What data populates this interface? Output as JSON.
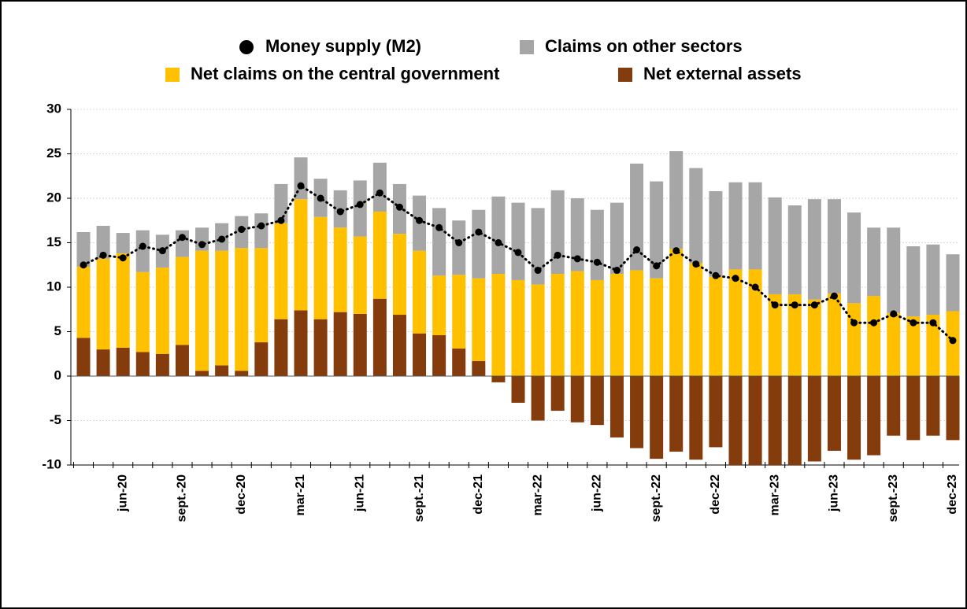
{
  "chart_data": {
    "type": "bar",
    "stacked": true,
    "categories": [
      null,
      null,
      "jun-20",
      null,
      null,
      "sept.-20",
      null,
      null,
      "dec-20",
      null,
      null,
      "mar-21",
      null,
      null,
      "jun-21",
      null,
      null,
      "sept.-21",
      null,
      null,
      "dec-21",
      null,
      null,
      "mar-22",
      null,
      null,
      "jun-22",
      null,
      null,
      "sept.-22",
      null,
      null,
      "dec-22",
      null,
      null,
      "mar-23",
      null,
      null,
      "jun-23",
      null,
      null,
      "sept.-23",
      null,
      null,
      "dec-23"
    ],
    "series": [
      {
        "name": "Money supply (M2)",
        "type": "line",
        "color": "#000000",
        "values": [
          12.5,
          13.6,
          13.3,
          14.6,
          14.1,
          15.6,
          14.8,
          15.4,
          16.5,
          16.9,
          17.5,
          21.4,
          20.0,
          18.5,
          19.3,
          20.6,
          19.0,
          17.5,
          16.7,
          15.0,
          16.2,
          15.0,
          13.9,
          11.9,
          13.6,
          13.2,
          12.8,
          11.9,
          14.2,
          12.4,
          14.1,
          12.6,
          11.3,
          11.0,
          10.0,
          8.0,
          8.0,
          8.0,
          9.0,
          6.0,
          6.0,
          7.0,
          6.0,
          6.0,
          4.0
        ]
      },
      {
        "name": "Claims on other sectors",
        "color": "#a6a6a6",
        "values": [
          3.9,
          3.7,
          2.3,
          4.7,
          3.7,
          3.0,
          2.6,
          3.1,
          3.6,
          3.9,
          4.4,
          4.7,
          4.3,
          4.2,
          6.3,
          5.5,
          5.6,
          6.2,
          7.6,
          6.1,
          7.7,
          8.7,
          8.7,
          8.6,
          9.4,
          8.2,
          7.9,
          8.0,
          12.0,
          10.9,
          11.0,
          10.7,
          9.6,
          9.8,
          9.8,
          10.9,
          10.0,
          11.3,
          10.6,
          10.2,
          7.7,
          9.6,
          7.9,
          7.9,
          6.4
        ]
      },
      {
        "name": "Net claims on the central government",
        "color": "#ffc000",
        "values": [
          8.0,
          10.2,
          10.6,
          9.0,
          9.7,
          9.9,
          13.5,
          12.9,
          13.8,
          10.6,
          10.8,
          12.5,
          11.5,
          9.5,
          8.7,
          9.8,
          9.1,
          9.3,
          6.7,
          8.3,
          9.3,
          11.5,
          10.8,
          10.3,
          11.5,
          11.8,
          10.8,
          11.5,
          11.9,
          11.0,
          14.3,
          12.7,
          11.2,
          12.0,
          12.0,
          9.2,
          9.2,
          8.6,
          9.3,
          8.2,
          9.0,
          7.1,
          6.7,
          6.9,
          7.3
        ]
      },
      {
        "name": "Net external assets",
        "color": "#843c0c",
        "values": [
          4.3,
          3.0,
          3.2,
          2.7,
          2.5,
          3.5,
          0.6,
          1.2,
          0.6,
          3.8,
          6.4,
          7.4,
          6.4,
          7.2,
          7.0,
          8.7,
          6.9,
          4.8,
          4.6,
          3.1,
          1.7,
          -0.7,
          -3.0,
          -5.0,
          -3.9,
          -5.2,
          -5.5,
          -6.9,
          -8.1,
          -9.3,
          -8.5,
          -9.4,
          -8.0,
          -10.0,
          -10.0,
          -10.0,
          -10.0,
          -9.6,
          -8.4,
          -9.4,
          -8.9,
          -6.7,
          -7.2,
          -6.7,
          -7.2
        ]
      }
    ],
    "ylim": [
      -10,
      30
    ],
    "yticks": [
      -10,
      -5,
      0,
      5,
      10,
      15,
      20,
      25,
      30
    ],
    "grid": true
  }
}
